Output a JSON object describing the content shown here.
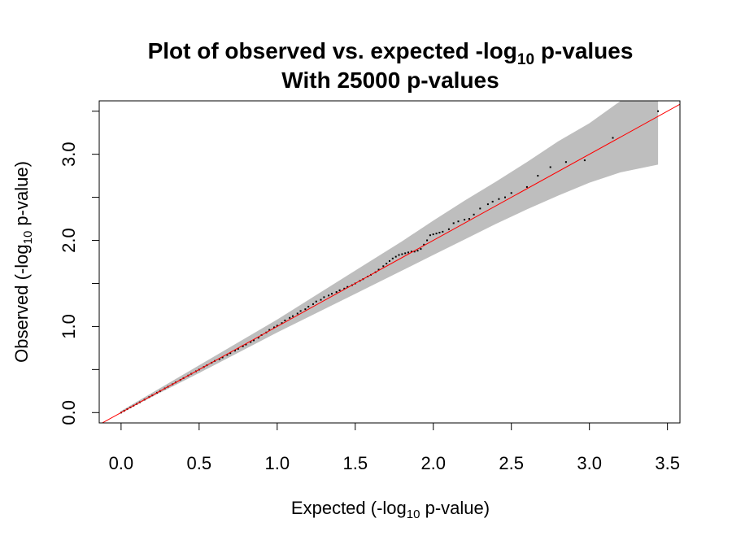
{
  "chart_data": {
    "type": "scatter",
    "title": {
      "line1_prefix": "Plot of observed vs. expected -log",
      "line1_sub": "10",
      "line1_suffix": " p-values",
      "line2": "With 25000 p-values"
    },
    "xlabel": {
      "prefix": "Expected (-log",
      "sub": "10",
      "suffix": " p-value)"
    },
    "ylabel": {
      "prefix": "Observed (-log",
      "sub": "10",
      "suffix": " p-value)"
    },
    "xlim": [
      -0.14,
      3.58
    ],
    "ylim": [
      -0.12,
      3.62
    ],
    "x_ticks": [
      0.0,
      0.5,
      1.0,
      1.5,
      2.0,
      2.5,
      3.0,
      3.5
    ],
    "x_tick_labels": [
      "0.0",
      "0.5",
      "1.0",
      "1.5",
      "2.0",
      "2.5",
      "3.0",
      "3.5"
    ],
    "y_ticks": [
      0.0,
      0.5,
      1.0,
      1.5,
      2.0,
      2.5,
      3.0,
      3.5
    ],
    "y_tick_labels": [
      "0.0",
      "1.0",
      "2.0",
      "3.0"
    ],
    "y_labeled_ticks": [
      0.0,
      1.0,
      2.0,
      3.0
    ],
    "grid": false,
    "reference_line": {
      "slope": 1,
      "intercept": 0,
      "color": "#ff0000"
    },
    "confidence_band": {
      "color": "#bebebe",
      "x": [
        0.0,
        0.5,
        1.0,
        1.5,
        1.8,
        2.0,
        2.2,
        2.4,
        2.6,
        2.8,
        3.0,
        3.2,
        3.44
      ],
      "upper": [
        0.02,
        0.55,
        1.08,
        1.65,
        1.99,
        2.23,
        2.46,
        2.68,
        2.91,
        3.15,
        3.36,
        3.62,
        3.95
      ],
      "lower": [
        0.0,
        0.46,
        0.93,
        1.38,
        1.65,
        1.83,
        2.01,
        2.19,
        2.36,
        2.52,
        2.67,
        2.79,
        2.88
      ]
    },
    "series": [
      {
        "color": "#000000",
        "x": [
          0.0,
          0.02,
          0.04,
          0.06,
          0.08,
          0.1,
          0.12,
          0.15,
          0.18,
          0.2,
          0.23,
          0.25,
          0.28,
          0.3,
          0.33,
          0.35,
          0.38,
          0.4,
          0.43,
          0.45,
          0.48,
          0.5,
          0.53,
          0.55,
          0.58,
          0.6,
          0.63,
          0.65,
          0.68,
          0.7,
          0.73,
          0.75,
          0.78,
          0.8,
          0.83,
          0.85,
          0.88,
          0.9,
          0.93,
          0.95,
          0.98,
          1.0,
          1.03,
          1.05,
          1.08,
          1.1,
          1.13,
          1.15,
          1.18,
          1.2,
          1.23,
          1.25,
          1.28,
          1.3,
          1.33,
          1.35,
          1.38,
          1.4,
          1.43,
          1.45,
          1.48,
          1.5,
          1.53,
          1.55,
          1.58,
          1.6,
          1.63,
          1.65,
          1.68,
          1.7,
          1.72,
          1.74,
          1.76,
          1.78,
          1.8,
          1.82,
          1.84,
          1.86,
          1.88,
          1.9,
          1.92,
          1.94,
          1.96,
          1.98,
          2.0,
          2.02,
          2.04,
          2.06,
          2.1,
          2.13,
          2.16,
          2.2,
          2.23,
          2.26,
          2.3,
          2.35,
          2.38,
          2.42,
          2.46,
          2.5,
          2.6,
          2.67,
          2.75,
          2.85,
          2.97,
          3.15,
          3.44
        ],
        "y": [
          0.0,
          0.02,
          0.04,
          0.06,
          0.08,
          0.1,
          0.12,
          0.15,
          0.18,
          0.2,
          0.23,
          0.25,
          0.28,
          0.3,
          0.33,
          0.35,
          0.38,
          0.4,
          0.43,
          0.45,
          0.48,
          0.5,
          0.53,
          0.55,
          0.58,
          0.6,
          0.62,
          0.64,
          0.67,
          0.69,
          0.72,
          0.74,
          0.77,
          0.79,
          0.82,
          0.84,
          0.87,
          0.9,
          0.93,
          0.96,
          0.99,
          1.01,
          1.04,
          1.07,
          1.1,
          1.12,
          1.15,
          1.18,
          1.2,
          1.23,
          1.26,
          1.29,
          1.31,
          1.34,
          1.36,
          1.38,
          1.4,
          1.42,
          1.44,
          1.46,
          1.48,
          1.5,
          1.53,
          1.55,
          1.58,
          1.6,
          1.63,
          1.66,
          1.7,
          1.73,
          1.76,
          1.79,
          1.81,
          1.83,
          1.84,
          1.85,
          1.86,
          1.87,
          1.87,
          1.88,
          1.9,
          1.95,
          2.0,
          2.06,
          2.07,
          2.08,
          2.09,
          2.1,
          2.13,
          2.2,
          2.22,
          2.24,
          2.25,
          2.3,
          2.37,
          2.42,
          2.45,
          2.48,
          2.5,
          2.55,
          2.62,
          2.75,
          2.85,
          2.91,
          2.93,
          3.19,
          3.5
        ]
      }
    ]
  }
}
